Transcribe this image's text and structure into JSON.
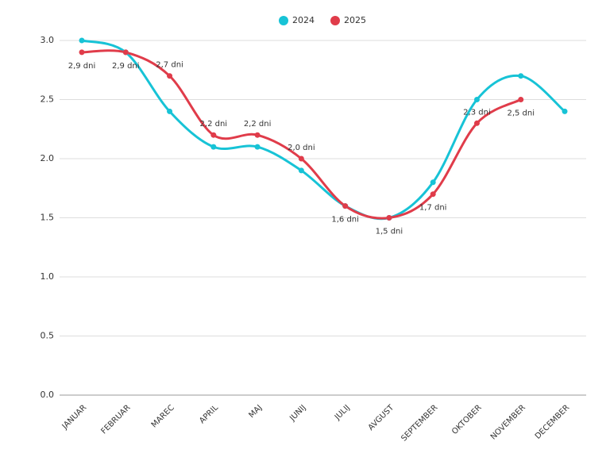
{
  "chart_data": {
    "type": "line",
    "categories": [
      "JANUAR",
      "FEBRUAR",
      "MAREC",
      "APRIL",
      "MAJ",
      "JUNIJ",
      "JULIJ",
      "AVGUST",
      "SEPTEMBER",
      "OKTOBER",
      "NOVEMBER",
      "DECEMBER"
    ],
    "series": [
      {
        "name": "2024",
        "color": "#17c3d6",
        "values": [
          3.0,
          2.9,
          2.4,
          2.1,
          2.1,
          1.9,
          1.6,
          1.5,
          1.8,
          2.5,
          2.7,
          2.4
        ]
      },
      {
        "name": "2025",
        "color": "#e03c4a",
        "values": [
          2.9,
          2.9,
          2.7,
          2.2,
          2.2,
          2.0,
          1.6,
          1.5,
          1.7,
          2.3,
          2.5,
          null
        ],
        "value_labels": [
          "2,9 dni",
          "2,9 dni",
          "2,7 dni",
          "2,2 dni",
          "2,2 dni",
          "2,0 dni",
          "1,6 dni",
          "1,5 dni",
          "1,7 dni",
          "2,3 dni",
          "2,5 dni",
          null
        ]
      }
    ],
    "ylim": [
      0,
      3
    ],
    "yticks": [
      {
        "value": 0,
        "label": "0.0"
      },
      {
        "value": 0.5,
        "label": "0.5"
      },
      {
        "value": 1,
        "label": "1.0"
      },
      {
        "value": 1.5,
        "label": "1.5"
      },
      {
        "value": 2,
        "label": "2.0"
      },
      {
        "value": 2.5,
        "label": "2.5"
      },
      {
        "value": 3,
        "label": "3.0"
      }
    ],
    "grid": true,
    "legend": "top"
  }
}
